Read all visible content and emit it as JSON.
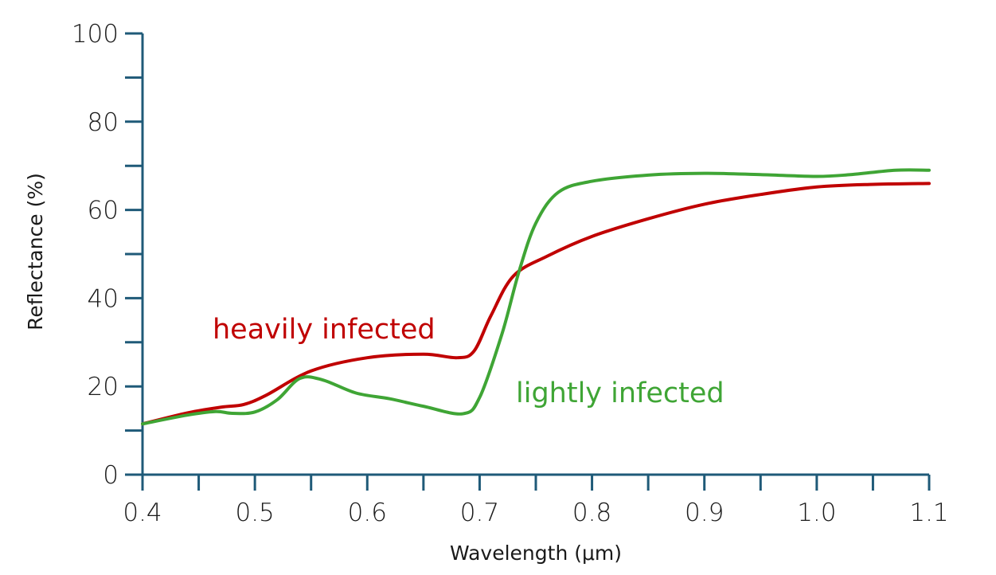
{
  "chart_data": {
    "type": "line",
    "xlabel": "Wavelength (μm)",
    "ylabel": "Reflectance (%)",
    "xlim": [
      0.4,
      1.1
    ],
    "ylim": [
      0,
      100
    ],
    "x_ticks": [
      {
        "value": 0.4,
        "label": "0.4"
      },
      {
        "value": 0.5,
        "label": "0.5"
      },
      {
        "value": 0.6,
        "label": "0.6"
      },
      {
        "value": 0.7,
        "label": "0.7"
      },
      {
        "value": 0.8,
        "label": "0.8"
      },
      {
        "value": 0.9,
        "label": "0.9"
      },
      {
        "value": 1.0,
        "label": "1.0"
      },
      {
        "value": 1.1,
        "label": "1.1"
      }
    ],
    "x_minor_ticks": [
      0.45,
      0.55,
      0.65,
      0.75,
      0.85,
      0.95,
      1.05
    ],
    "y_ticks": [
      {
        "value": 0,
        "label": "0"
      },
      {
        "value": 20,
        "label": "20"
      },
      {
        "value": 40,
        "label": "40"
      },
      {
        "value": 60,
        "label": "60"
      },
      {
        "value": 80,
        "label": "80"
      },
      {
        "value": 100,
        "label": "100"
      }
    ],
    "y_minor_ticks": [
      10,
      30,
      50,
      70,
      90
    ],
    "grid": false,
    "axis_color": "#1f5a78",
    "series": [
      {
        "name": "heavily infected",
        "color": "#c00000",
        "x": [
          0.4,
          0.44,
          0.47,
          0.49,
          0.51,
          0.55,
          0.6,
          0.65,
          0.68,
          0.695,
          0.71,
          0.73,
          0.76,
          0.8,
          0.85,
          0.9,
          0.95,
          1.0,
          1.05,
          1.1
        ],
        "y": [
          11.5,
          14,
          15.3,
          15.9,
          18,
          23.5,
          26.5,
          27.3,
          26.5,
          28,
          36,
          45,
          49.5,
          54,
          58,
          61.3,
          63.5,
          65.2,
          65.8,
          66
        ]
      },
      {
        "name": "lightly infected",
        "color": "#3fa535",
        "x": [
          0.4,
          0.44,
          0.465,
          0.48,
          0.5,
          0.52,
          0.54,
          0.56,
          0.59,
          0.62,
          0.65,
          0.685,
          0.7,
          0.72,
          0.735,
          0.75,
          0.77,
          0.8,
          0.85,
          0.9,
          0.95,
          1.0,
          1.03,
          1.07,
          1.1
        ],
        "y": [
          11.5,
          13.5,
          14.3,
          13.9,
          14.2,
          17,
          21.8,
          21.5,
          18.5,
          17.2,
          15.5,
          13.8,
          17.5,
          32,
          46,
          57,
          64,
          66.5,
          67.9,
          68.3,
          68,
          67.6,
          68,
          69,
          69
        ]
      }
    ]
  }
}
